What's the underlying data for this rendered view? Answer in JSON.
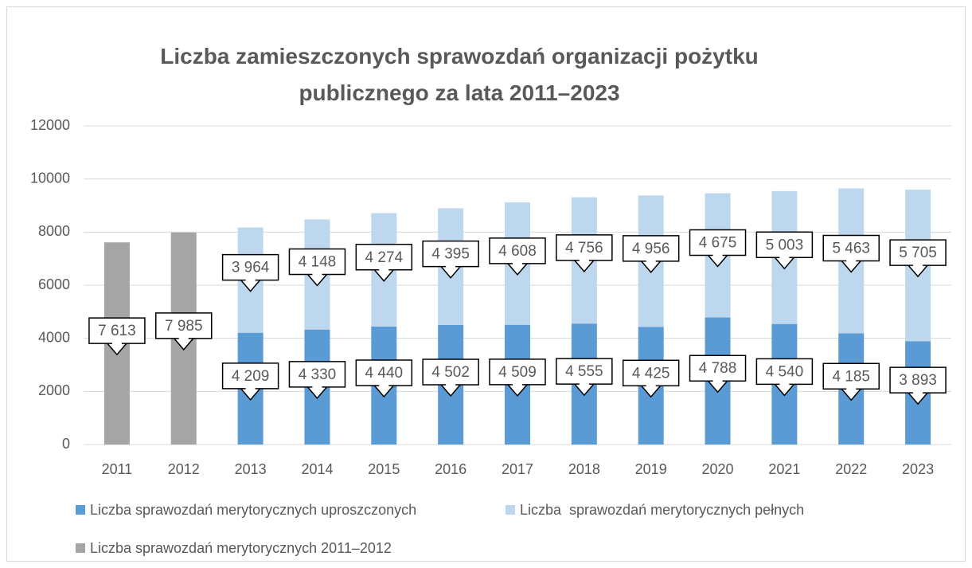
{
  "chart_data": {
    "type": "bar",
    "stacked": true,
    "title": "Liczba zamieszczonych sprawozdań organizacji pożytku publicznego za lata 2011–2023",
    "categories": [
      "2011",
      "2012",
      "2013",
      "2014",
      "2015",
      "2016",
      "2017",
      "2018",
      "2019",
      "2020",
      "2021",
      "2022",
      "2023"
    ],
    "series": [
      {
        "name": "Liczba sprawozdań merytorycznych uproszczonych",
        "color": "#5b9bd5",
        "values": [
          null,
          null,
          4209,
          4330,
          4440,
          4502,
          4509,
          4555,
          4425,
          4788,
          4540,
          4185,
          3893
        ],
        "value_labels": [
          null,
          null,
          "4 209",
          "4 330",
          "4 440",
          "4 502",
          "4 509",
          "4 555",
          "4 425",
          "4 788",
          "4 540",
          "4 185",
          "3 893"
        ]
      },
      {
        "name": "Liczba  sprawozdań merytorycznych pełnych",
        "color": "#bdd7ee",
        "values": [
          null,
          null,
          3964,
          4148,
          4274,
          4395,
          4608,
          4756,
          4956,
          4675,
          5003,
          5463,
          5705
        ],
        "value_labels": [
          null,
          null,
          "3 964",
          "4 148",
          "4 274",
          "4 395",
          "4 608",
          "4 756",
          "4 956",
          "4 675",
          "5 003",
          "5 463",
          "5 705"
        ]
      },
      {
        "name": "Liczba sprawozdań merytorycznych 2011–2012",
        "color": "#a5a5a5",
        "values": [
          7613,
          7985,
          null,
          null,
          null,
          null,
          null,
          null,
          null,
          null,
          null,
          null,
          null
        ],
        "value_labels": [
          "7 613",
          "7 985",
          null,
          null,
          null,
          null,
          null,
          null,
          null,
          null,
          null,
          null,
          null
        ]
      }
    ],
    "ylim": [
      0,
      12000
    ],
    "yticks": [
      0,
      2000,
      4000,
      6000,
      8000,
      10000,
      12000
    ],
    "grid": true,
    "legend": "bottom"
  }
}
